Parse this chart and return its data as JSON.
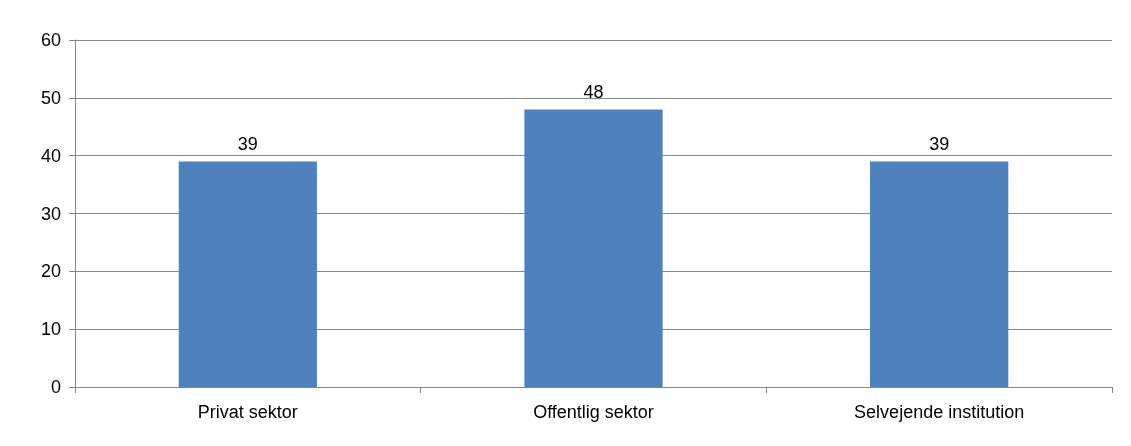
{
  "chart_data": {
    "type": "bar",
    "categories": [
      "Privat sektor",
      "Offentlig sektor",
      "Selvejende institution"
    ],
    "values": [
      39,
      48,
      39
    ],
    "color": "#4f81bd",
    "ylim": [
      0,
      60
    ],
    "yticks": [
      0,
      10,
      20,
      30,
      40,
      50,
      60
    ],
    "grid": "y",
    "data_labels": true
  }
}
